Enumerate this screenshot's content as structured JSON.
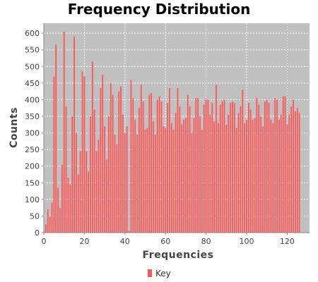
{
  "chart_data": {
    "type": "bar",
    "title": "Frequency Distribution",
    "xlabel": "Frequencies",
    "ylabel": "Counts",
    "xlim": [
      0,
      131
    ],
    "ylim": [
      0,
      630
    ],
    "x_ticks": [
      0,
      20,
      40,
      60,
      80,
      100,
      120
    ],
    "y_ticks": [
      0,
      50,
      100,
      150,
      200,
      250,
      300,
      350,
      400,
      450,
      500,
      550,
      600
    ],
    "grid": true,
    "legend": "bottom-center",
    "series": [
      {
        "name": "Key",
        "color": "#ff5555",
        "x": [
          1,
          2,
          3,
          4,
          5,
          6,
          7,
          8,
          9,
          10,
          11,
          12,
          13,
          14,
          15,
          16,
          17,
          18,
          19,
          20,
          21,
          22,
          23,
          24,
          25,
          26,
          27,
          28,
          29,
          30,
          31,
          32,
          33,
          34,
          35,
          36,
          37,
          38,
          39,
          40,
          41,
          42,
          43,
          44,
          45,
          46,
          47,
          48,
          49,
          50,
          51,
          52,
          53,
          54,
          55,
          56,
          57,
          58,
          59,
          60,
          61,
          62,
          63,
          64,
          65,
          66,
          67,
          68,
          69,
          70,
          71,
          72,
          73,
          74,
          75,
          76,
          77,
          78,
          79,
          80,
          81,
          82,
          83,
          84,
          85,
          86,
          87,
          88,
          89,
          90,
          91,
          92,
          93,
          94,
          95,
          96,
          97,
          98,
          99,
          100,
          101,
          102,
          103,
          104,
          105,
          106,
          107,
          108,
          109,
          110,
          111,
          112,
          113,
          114,
          115,
          116,
          117,
          118,
          119,
          120,
          121,
          122,
          123,
          124,
          125,
          126
        ],
        "values": [
          25,
          70,
          48,
          90,
          470,
          565,
          135,
          75,
          205,
          605,
          380,
          165,
          145,
          350,
          590,
          300,
          175,
          245,
          485,
          470,
          245,
          185,
          350,
          515,
          370,
          245,
          280,
          435,
          475,
          320,
          220,
          350,
          450,
          415,
          295,
          265,
          425,
          440,
          355,
          300,
          320,
          5,
          460,
          405,
          340,
          295,
          375,
          445,
          395,
          310,
          315,
          415,
          420,
          335,
          295,
          400,
          410,
          395,
          320,
          315,
          390,
          435,
          330,
          310,
          360,
          435,
          380,
          325,
          340,
          345,
          415,
          380,
          300,
          345,
          405,
          405,
          350,
          310,
          385,
          400,
          400,
          355,
          390,
          335,
          445,
          330,
          385,
          395,
          400,
          325,
          355,
          390,
          395,
          390,
          315,
          360,
          380,
          430,
          330,
          340,
          390,
          370,
          340,
          345,
          405,
          385,
          350,
          320,
          395,
          400,
          390,
          340,
          330,
          405,
          400,
          340,
          355,
          410,
          410,
          325,
          355,
          380,
          400,
          365,
          375,
          360
        ]
      }
    ]
  }
}
